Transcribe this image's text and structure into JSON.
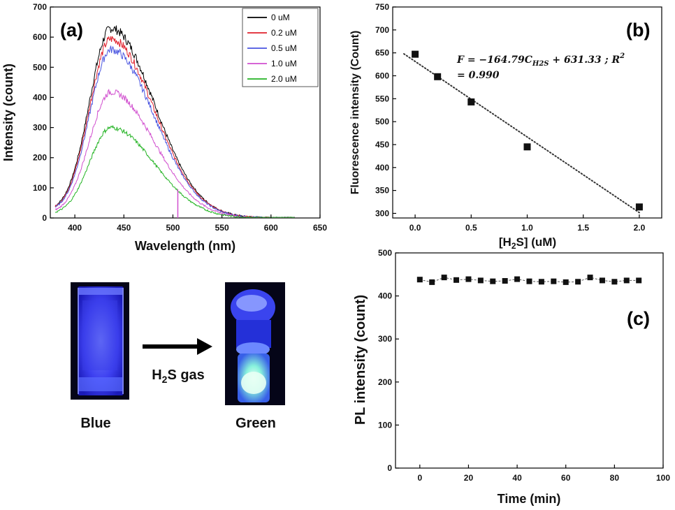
{
  "panels": {
    "a": {
      "label": "(a)"
    },
    "b": {
      "label": "(b)"
    },
    "c": {
      "label": "(c)"
    }
  },
  "equation": {
    "line1_prefix": "F = −164.79C",
    "line1_sub": "H2S",
    "line1_suffix": " + 631.33 ; R",
    "line1_sup": "2",
    "line2": "= 0.990"
  },
  "photo": {
    "arrow_label_prefix": "H",
    "arrow_label_sub": "2",
    "arrow_label_suffix": "S gas",
    "left_caption": "Blue",
    "right_caption": "Green"
  },
  "colors": {
    "series": [
      "#000000",
      "#e0202c",
      "#4a55e0",
      "#d14fcf",
      "#22b322"
    ],
    "fit_line": "#333333",
    "marker": "#111111"
  },
  "chart_data": [
    {
      "id": "a",
      "type": "line",
      "xlabel": "Wavelength (nm)",
      "ylabel": "Intensity (count)",
      "xlim": [
        375,
        650
      ],
      "ylim": [
        0,
        700
      ],
      "xticks": [
        400,
        450,
        500,
        550,
        600,
        650
      ],
      "yticks": [
        0,
        100,
        200,
        300,
        400,
        500,
        600,
        700
      ],
      "legend_position": "top-right",
      "x_range": [
        380,
        625
      ],
      "series": [
        {
          "name": "0 uM",
          "peak": 625,
          "peak_x": 437,
          "values_at": {
            "400": 240,
            "450": 590,
            "500": 330,
            "550": 80,
            "600": 15
          }
        },
        {
          "name": "0.2 uM",
          "peak": 590,
          "peak_x": 437,
          "values_at": {
            "400": 230,
            "450": 555,
            "500": 305,
            "550": 68,
            "600": 12
          }
        },
        {
          "name": "0.5 uM",
          "peak": 555,
          "peak_x": 437,
          "values_at": {
            "400": 215,
            "450": 520,
            "500": 280,
            "550": 60,
            "600": 10
          }
        },
        {
          "name": "1.0 uM",
          "peak": 415,
          "peak_x": 437,
          "values_at": {
            "400": 160,
            "450": 390,
            "500": 200,
            "550": 45,
            "600": 8
          }
        },
        {
          "name": "2.0 uM",
          "peak": 298,
          "peak_x": 437,
          "values_at": {
            "400": 115,
            "450": 280,
            "500": 140,
            "550": 30,
            "600": 5
          }
        }
      ],
      "annotations": [
        {
          "type": "vertical_spike",
          "series": "1.0 uM",
          "x": 505,
          "y_top": 95
        }
      ]
    },
    {
      "id": "b",
      "type": "scatter",
      "xlabel": "[H2S] (uM)",
      "ylabel": "Fluorescence intensity (Count)",
      "xlim": [
        -0.2,
        2.2
      ],
      "ylim": [
        290,
        750
      ],
      "xticks": [
        0.0,
        0.5,
        1.0,
        1.5,
        2.0
      ],
      "xtick_labels": [
        "0.0",
        "0.5",
        "1.0",
        "1.5",
        "2.0"
      ],
      "yticks": [
        300,
        350,
        400,
        450,
        500,
        550,
        600,
        650,
        700,
        750
      ],
      "points": [
        {
          "x": 0.0,
          "y": 647
        },
        {
          "x": 0.2,
          "y": 598
        },
        {
          "x": 0.5,
          "y": 543
        },
        {
          "x": 1.0,
          "y": 445
        },
        {
          "x": 2.0,
          "y": 314
        }
      ],
      "fit": {
        "slope": -164.79,
        "intercept": 631.33,
        "x_range": [
          -0.1,
          2.0
        ],
        "style": "dotted"
      }
    },
    {
      "id": "c",
      "type": "scatter",
      "xlabel": "Time (min)",
      "ylabel": "PL intensity (count)",
      "xlim": [
        -10,
        100
      ],
      "ylim": [
        0,
        500
      ],
      "xticks": [
        0,
        20,
        40,
        60,
        80,
        100
      ],
      "yticks": [
        0,
        100,
        200,
        300,
        400,
        500
      ],
      "connected": true,
      "points": [
        {
          "x": 0,
          "y": 438
        },
        {
          "x": 5,
          "y": 432
        },
        {
          "x": 10,
          "y": 443
        },
        {
          "x": 15,
          "y": 437
        },
        {
          "x": 20,
          "y": 439
        },
        {
          "x": 25,
          "y": 436
        },
        {
          "x": 30,
          "y": 434
        },
        {
          "x": 35,
          "y": 435
        },
        {
          "x": 40,
          "y": 439
        },
        {
          "x": 45,
          "y": 434
        },
        {
          "x": 50,
          "y": 433
        },
        {
          "x": 55,
          "y": 434
        },
        {
          "x": 60,
          "y": 432
        },
        {
          "x": 65,
          "y": 433
        },
        {
          "x": 70,
          "y": 443
        },
        {
          "x": 75,
          "y": 436
        },
        {
          "x": 80,
          "y": 433
        },
        {
          "x": 85,
          "y": 436
        },
        {
          "x": 90,
          "y": 436
        }
      ]
    }
  ]
}
